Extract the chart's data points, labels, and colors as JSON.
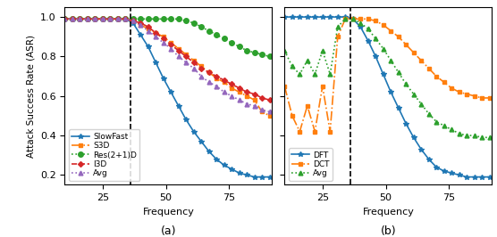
{
  "subplot_a": {
    "x": [
      10,
      13,
      16,
      19,
      22,
      25,
      28,
      31,
      34,
      37,
      40,
      43,
      46,
      49,
      52,
      55,
      58,
      61,
      64,
      67,
      70,
      73,
      76,
      79,
      82,
      85,
      88,
      91
    ],
    "SlowFast": [
      0.99,
      0.99,
      0.99,
      0.99,
      0.99,
      0.99,
      0.99,
      0.99,
      0.99,
      0.97,
      0.91,
      0.85,
      0.77,
      0.69,
      0.62,
      0.55,
      0.48,
      0.42,
      0.37,
      0.32,
      0.28,
      0.25,
      0.23,
      0.21,
      0.2,
      0.19,
      0.19,
      0.19
    ],
    "S3D": [
      0.99,
      0.99,
      0.99,
      0.99,
      0.99,
      0.99,
      0.99,
      0.99,
      0.99,
      0.98,
      0.96,
      0.94,
      0.92,
      0.9,
      0.87,
      0.84,
      0.81,
      0.78,
      0.75,
      0.72,
      0.69,
      0.67,
      0.64,
      0.62,
      0.6,
      0.58,
      0.52,
      0.5
    ],
    "Res21D": [
      0.99,
      0.99,
      0.99,
      0.99,
      0.99,
      0.99,
      0.99,
      0.99,
      0.99,
      0.99,
      0.99,
      0.99,
      0.99,
      0.99,
      0.99,
      0.99,
      0.98,
      0.97,
      0.95,
      0.93,
      0.91,
      0.89,
      0.87,
      0.85,
      0.83,
      0.82,
      0.81,
      0.8
    ],
    "I3D": [
      0.99,
      0.99,
      0.99,
      0.99,
      0.99,
      0.99,
      0.99,
      0.99,
      0.99,
      0.98,
      0.97,
      0.95,
      0.92,
      0.89,
      0.86,
      0.83,
      0.8,
      0.77,
      0.74,
      0.72,
      0.7,
      0.68,
      0.66,
      0.64,
      0.62,
      0.61,
      0.59,
      0.58
    ],
    "Avg": [
      0.99,
      0.99,
      0.99,
      0.99,
      0.99,
      0.99,
      0.99,
      0.99,
      0.99,
      0.98,
      0.96,
      0.93,
      0.9,
      0.87,
      0.84,
      0.8,
      0.77,
      0.74,
      0.7,
      0.67,
      0.65,
      0.62,
      0.6,
      0.58,
      0.56,
      0.55,
      0.53,
      0.52
    ],
    "vline_x": 36,
    "xlabel": "Frequency",
    "ylabel": "Attack Success Rate (ASR)",
    "label": "(a)",
    "xlim": [
      10,
      92
    ],
    "ylim": [
      0.15,
      1.05
    ],
    "yticks": [
      0.2,
      0.4,
      0.6,
      0.8,
      1.0
    ],
    "xticks": [
      25,
      50,
      75
    ]
  },
  "subplot_b": {
    "x": [
      10,
      13,
      16,
      19,
      22,
      25,
      28,
      31,
      34,
      37,
      40,
      43,
      46,
      49,
      52,
      55,
      58,
      61,
      64,
      67,
      70,
      73,
      76,
      79,
      82,
      85,
      88,
      91
    ],
    "DFT": [
      1.0,
      1.0,
      1.0,
      1.0,
      1.0,
      1.0,
      1.0,
      1.0,
      1.0,
      0.99,
      0.95,
      0.88,
      0.8,
      0.71,
      0.62,
      0.54,
      0.46,
      0.39,
      0.33,
      0.28,
      0.24,
      0.22,
      0.21,
      0.2,
      0.19,
      0.19,
      0.19,
      0.19
    ],
    "DCT": [
      0.65,
      0.5,
      0.42,
      0.55,
      0.42,
      0.65,
      0.42,
      0.9,
      0.99,
      0.99,
      0.99,
      0.99,
      0.98,
      0.96,
      0.93,
      0.9,
      0.86,
      0.82,
      0.78,
      0.74,
      0.7,
      0.67,
      0.64,
      0.62,
      0.61,
      0.6,
      0.59,
      0.59
    ],
    "Avg": [
      0.83,
      0.75,
      0.71,
      0.78,
      0.71,
      0.83,
      0.71,
      0.95,
      0.99,
      0.99,
      0.97,
      0.94,
      0.89,
      0.84,
      0.78,
      0.72,
      0.66,
      0.61,
      0.56,
      0.51,
      0.47,
      0.45,
      0.43,
      0.41,
      0.4,
      0.4,
      0.39,
      0.39
    ],
    "vline_x": 36,
    "xlabel": "Frequency",
    "ylabel": "",
    "label": "(b)",
    "xlim": [
      10,
      92
    ],
    "ylim": [
      0.15,
      1.05
    ],
    "yticks": [
      0.2,
      0.4,
      0.6,
      0.8,
      1.0
    ],
    "xticks": [
      25,
      50,
      75
    ]
  },
  "colors": {
    "SlowFast": "#1f77b4",
    "S3D": "#ff7f0e",
    "Res21D": "#2ca02c",
    "I3D": "#d62728",
    "Avg_a": "#9467bd",
    "DFT": "#1f77b4",
    "DCT": "#ff7f0e",
    "Avg_b": "#2ca02c"
  },
  "figsize": [
    5.56,
    2.66
  ],
  "dpi": 100
}
